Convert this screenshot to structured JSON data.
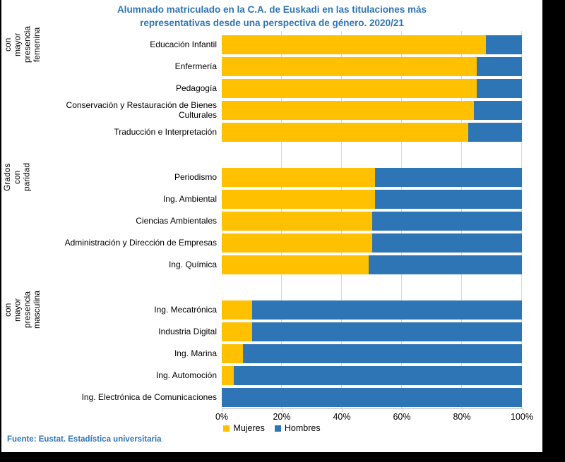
{
  "title": {
    "line1": "Alumnado matriculado en la C.A. de Euskadi en las titulaciones más",
    "line2": "representativas desde una perspectiva de género. 2020/21"
  },
  "source": "Fuente: Eustat. Estadística universitaria",
  "colors": {
    "mujeres": "#FFC000",
    "hombres": "#2E75B6",
    "title_text": "#2E75B6",
    "gridline": "#D9D9D9",
    "axis": "#BFBFBF",
    "frame_background": "#000000"
  },
  "legend": [
    {
      "label": "Mujeres",
      "color": "#FFC000"
    },
    {
      "label": "Hombres",
      "color": "#2E75B6"
    }
  ],
  "chart_data": {
    "type": "bar",
    "orientation": "horizontal",
    "stacked": true,
    "unit": "percent",
    "xlim": [
      0,
      100
    ],
    "x_ticks": [
      "0%",
      "20%",
      "40%",
      "60%",
      "80%",
      "100%"
    ],
    "x_tick_values": [
      0,
      20,
      40,
      60,
      80,
      100
    ],
    "grid": true,
    "legend_position": "bottom",
    "series_names": [
      "Mujeres",
      "Hombres"
    ],
    "groups": [
      {
        "label": "Grados con mayor presencia femenina",
        "rows": [
          {
            "category": "Educación Infantil",
            "mujeres": 88,
            "hombres": 12
          },
          {
            "category": "Enfermería",
            "mujeres": 85,
            "hombres": 15
          },
          {
            "category": "Pedagogía",
            "mujeres": 85,
            "hombres": 15
          },
          {
            "category": "Conservación y Restauración de Bienes Culturales",
            "mujeres": 84,
            "hombres": 16
          },
          {
            "category": "Traducción e Interpretación",
            "mujeres": 82,
            "hombres": 18
          }
        ]
      },
      {
        "label": "Grados con paridad",
        "rows": [
          {
            "category": "Periodismo",
            "mujeres": 51,
            "hombres": 49
          },
          {
            "category": "Ing. Ambiental",
            "mujeres": 51,
            "hombres": 49
          },
          {
            "category": "Ciencias Ambientales",
            "mujeres": 50,
            "hombres": 50
          },
          {
            "category": "Administración y Dirección de Empresas",
            "mujeres": 50,
            "hombres": 50
          },
          {
            "category": "Ing. Química",
            "mujeres": 49,
            "hombres": 51
          }
        ]
      },
      {
        "label": "Grados con mayor presencia masculina",
        "rows": [
          {
            "category": "Ing. Mecatrónica",
            "mujeres": 10,
            "hombres": 90
          },
          {
            "category": "Industria Digital",
            "mujeres": 10,
            "hombres": 90
          },
          {
            "category": "Ing. Marina",
            "mujeres": 7,
            "hombres": 93
          },
          {
            "category": "Ing. Automoción",
            "mujeres": 4,
            "hombres": 96
          },
          {
            "category": "Ing. Electrónica de Comunicaciones",
            "mujeres": 0,
            "hombres": 100
          }
        ]
      }
    ]
  }
}
